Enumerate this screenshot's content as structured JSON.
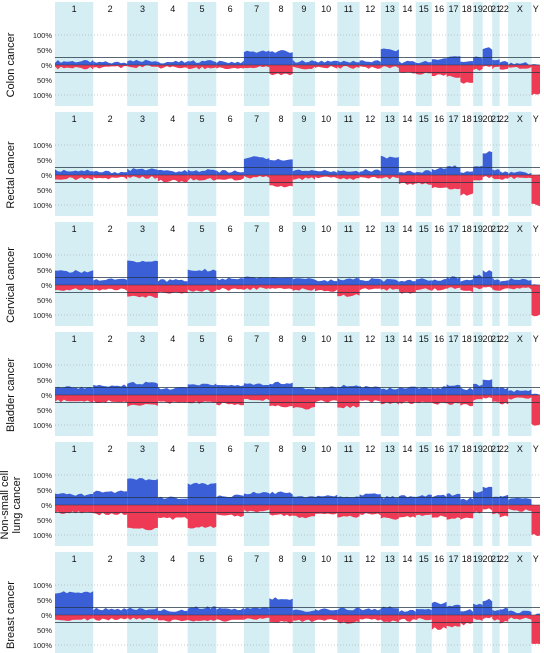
{
  "chromosomes": [
    "1",
    "2",
    "3",
    "4",
    "5",
    "6",
    "7",
    "8",
    "9",
    "10",
    "11",
    "12",
    "13",
    "14",
    "15",
    "16",
    "17",
    "18",
    "19",
    "20",
    "21",
    "22",
    "X",
    "Y"
  ],
  "y_tick_labels": [
    "100%",
    "50%",
    "0%",
    "50%",
    "100%"
  ],
  "colors": {
    "gain": "#3a5fd6",
    "loss": "#ee3a55",
    "shade": "#d4eef3",
    "threshold": "#223344"
  },
  "chart_data": [
    {
      "type": "area",
      "title_lines": [
        "Colon cancer"
      ],
      "x_categories": [
        "1",
        "2",
        "3",
        "4",
        "5",
        "6",
        "7",
        "8",
        "9",
        "10",
        "11",
        "12",
        "13",
        "14",
        "15",
        "16",
        "17",
        "18",
        "19",
        "20",
        "21",
        "22",
        "X",
        "Y"
      ],
      "ylim": [
        -100,
        100
      ],
      "series": [
        {
          "name": "gain",
          "values": [
            12,
            8,
            15,
            10,
            12,
            10,
            45,
            45,
            12,
            10,
            10,
            12,
            50,
            10,
            10,
            18,
            25,
            8,
            25,
            55,
            15,
            12,
            5,
            0
          ]
        },
        {
          "name": "loss",
          "values": [
            10,
            8,
            6,
            8,
            10,
            12,
            6,
            30,
            10,
            8,
            8,
            8,
            8,
            25,
            28,
            35,
            40,
            60,
            15,
            6,
            10,
            12,
            8,
            100
          ]
        }
      ]
    },
    {
      "type": "area",
      "title_lines": [
        "Rectal cancer"
      ],
      "x_categories": [
        "1",
        "2",
        "3",
        "4",
        "5",
        "6",
        "7",
        "8",
        "9",
        "10",
        "11",
        "12",
        "13",
        "14",
        "15",
        "16",
        "17",
        "18",
        "19",
        "20",
        "21",
        "22",
        "X",
        "Y"
      ],
      "ylim": [
        -100,
        100
      ],
      "series": [
        {
          "name": "gain",
          "values": [
            15,
            10,
            18,
            12,
            15,
            12,
            58,
            52,
            15,
            12,
            12,
            15,
            60,
            12,
            12,
            20,
            28,
            10,
            30,
            75,
            15,
            12,
            8,
            0
          ]
        },
        {
          "name": "loss",
          "values": [
            12,
            10,
            8,
            20,
            15,
            15,
            8,
            38,
            12,
            10,
            12,
            10,
            10,
            30,
            30,
            40,
            45,
            65,
            20,
            8,
            12,
            15,
            10,
            100
          ]
        }
      ]
    },
    {
      "type": "area",
      "title_lines": [
        "Cervical cancer"
      ],
      "x_categories": [
        "1",
        "2",
        "3",
        "4",
        "5",
        "6",
        "7",
        "8",
        "9",
        "10",
        "11",
        "12",
        "13",
        "14",
        "15",
        "16",
        "17",
        "18",
        "19",
        "20",
        "21",
        "22",
        "X",
        "Y"
      ],
      "ylim": [
        -100,
        100
      ],
      "series": [
        {
          "name": "gain",
          "values": [
            45,
            18,
            80,
            15,
            50,
            20,
            25,
            25,
            20,
            15,
            20,
            18,
            15,
            15,
            18,
            18,
            25,
            15,
            30,
            45,
            20,
            15,
            18,
            0
          ]
        },
        {
          "name": "loss",
          "values": [
            15,
            15,
            40,
            25,
            20,
            15,
            12,
            15,
            15,
            20,
            35,
            15,
            15,
            25,
            15,
            15,
            12,
            20,
            10,
            8,
            15,
            15,
            10,
            100
          ]
        }
      ]
    },
    {
      "type": "area",
      "title_lines": [
        "Bladder cancer"
      ],
      "x_categories": [
        "1",
        "2",
        "3",
        "4",
        "5",
        "6",
        "7",
        "8",
        "9",
        "10",
        "11",
        "12",
        "13",
        "14",
        "15",
        "16",
        "17",
        "18",
        "19",
        "20",
        "21",
        "22",
        "X",
        "Y"
      ],
      "ylim": [
        -100,
        100
      ],
      "series": [
        {
          "name": "gain",
          "values": [
            25,
            30,
            40,
            22,
            35,
            30,
            35,
            40,
            22,
            25,
            30,
            28,
            20,
            25,
            22,
            25,
            35,
            20,
            35,
            50,
            25,
            22,
            15,
            0
          ]
        },
        {
          "name": "loss",
          "values": [
            20,
            22,
            35,
            25,
            25,
            30,
            15,
            38,
            45,
            22,
            40,
            22,
            28,
            25,
            25,
            28,
            30,
            35,
            15,
            12,
            22,
            28,
            12,
            100
          ]
        }
      ]
    },
    {
      "type": "area",
      "title_lines": [
        "Non-small cell",
        "lung cancer"
      ],
      "x_categories": [
        "1",
        "2",
        "3",
        "4",
        "5",
        "6",
        "7",
        "8",
        "9",
        "10",
        "11",
        "12",
        "13",
        "14",
        "15",
        "16",
        "17",
        "18",
        "19",
        "20",
        "21",
        "22",
        "X",
        "Y"
      ],
      "ylim": [
        -100,
        100
      ],
      "series": [
        {
          "name": "gain",
          "values": [
            35,
            45,
            85,
            25,
            70,
            30,
            40,
            40,
            25,
            30,
            30,
            35,
            25,
            30,
            30,
            30,
            35,
            20,
            45,
            60,
            25,
            30,
            20,
            0
          ]
        },
        {
          "name": "loss",
          "values": [
            25,
            30,
            80,
            45,
            75,
            35,
            20,
            35,
            40,
            30,
            40,
            30,
            45,
            40,
            35,
            40,
            45,
            45,
            25,
            15,
            30,
            40,
            18,
            100
          ]
        }
      ]
    },
    {
      "type": "area",
      "title_lines": [
        "Breast cancer"
      ],
      "x_categories": [
        "1",
        "2",
        "3",
        "4",
        "5",
        "6",
        "7",
        "8",
        "9",
        "10",
        "11",
        "12",
        "13",
        "14",
        "15",
        "16",
        "17",
        "18",
        "19",
        "20",
        "21",
        "22",
        "X",
        "Y"
      ],
      "ylim": [
        -100,
        100
      ],
      "series": [
        {
          "name": "gain",
          "values": [
            75,
            20,
            20,
            15,
            25,
            20,
            20,
            55,
            15,
            18,
            20,
            20,
            25,
            15,
            18,
            40,
            30,
            15,
            35,
            50,
            15,
            20,
            10,
            0
          ]
        },
        {
          "name": "loss",
          "values": [
            15,
            15,
            12,
            20,
            20,
            18,
            12,
            25,
            20,
            15,
            25,
            15,
            20,
            18,
            15,
            45,
            40,
            30,
            15,
            10,
            15,
            25,
            12,
            100
          ]
        }
      ]
    }
  ]
}
